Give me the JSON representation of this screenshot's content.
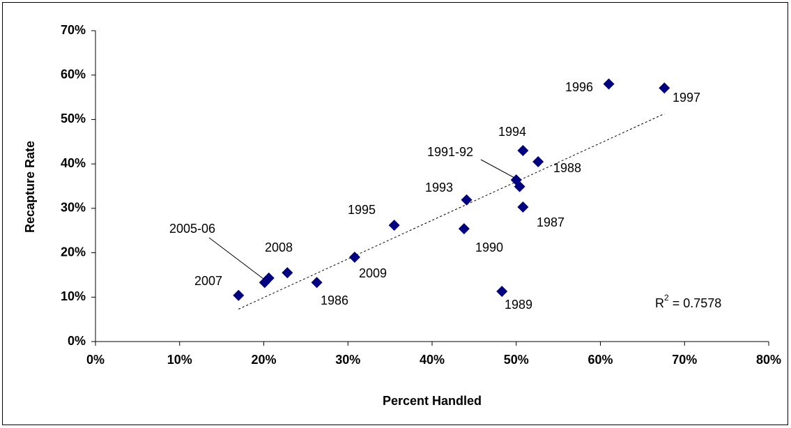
{
  "chart_data": {
    "type": "scatter",
    "x_label": "Percent Handled",
    "y_label": "Recapture Rate",
    "series": [
      {
        "color": "#000080",
        "x": [
          17,
          20.1,
          20.6,
          22.8,
          26.3,
          30.8,
          35.5,
          43.8,
          44.1,
          48.3,
          50.0,
          50.4,
          50.8,
          50.8,
          52.6,
          61.0,
          67.6
        ],
        "values": [
          10.4,
          13.3,
          14.3,
          15.5,
          13.3,
          19.0,
          26.2,
          25.4,
          31.9,
          11.3,
          36.4,
          34.9,
          43.0,
          30.3,
          40.5,
          58.0,
          57.1
        ],
        "point_labels": [
          "2007",
          "2005-06",
          null,
          "2008",
          "1986",
          "2009",
          "1995",
          "1990",
          "1993",
          "1989",
          "1991-92",
          null,
          "1994",
          "1987",
          "1988",
          "1996",
          "1997"
        ]
      }
    ],
    "trendline": {
      "x": [
        17,
        67.6
      ],
      "values": [
        7.3,
        51.3
      ]
    },
    "annotation": {
      "base": "R",
      "sup": "2",
      "rest": " = 0.7578"
    },
    "xlim": [
      0,
      80
    ],
    "xticks": [
      {
        "value": 0,
        "label": "0%"
      },
      {
        "value": 10,
        "label": "10%"
      },
      {
        "value": 20,
        "label": "20%"
      },
      {
        "value": 30,
        "label": "30%"
      },
      {
        "value": 40,
        "label": "40%"
      },
      {
        "value": 50,
        "label": "50%"
      },
      {
        "value": 60,
        "label": "60%"
      },
      {
        "value": 70,
        "label": "70%"
      },
      {
        "value": 80,
        "label": "80%"
      }
    ],
    "ylim": [
      0,
      70
    ],
    "yticks": [
      {
        "value": 0,
        "label": "0%"
      },
      {
        "value": 10,
        "label": "10%"
      },
      {
        "value": 20,
        "label": "20%"
      },
      {
        "value": 30,
        "label": "30%"
      },
      {
        "value": 40,
        "label": "40%"
      },
      {
        "value": 50,
        "label": "50%"
      },
      {
        "value": 60,
        "label": "60%"
      },
      {
        "value": 70,
        "label": "70%"
      }
    ]
  }
}
